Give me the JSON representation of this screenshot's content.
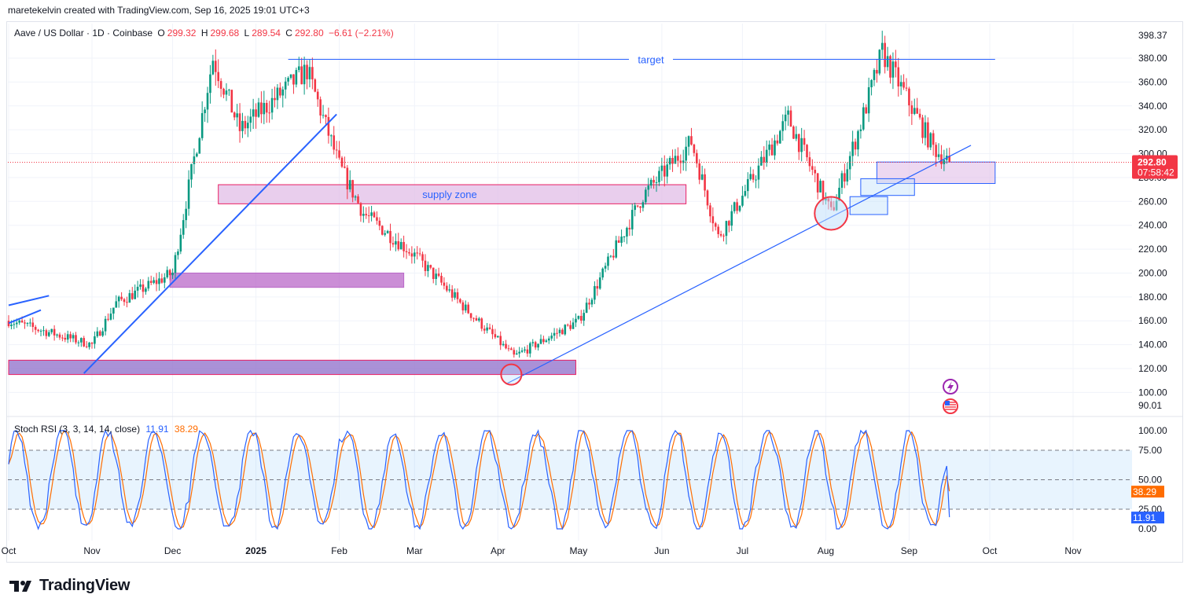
{
  "header": {
    "attribution": "maretekelvin created with TradingView.com, Sep 16, 2025 19:01 UTC+3"
  },
  "legend": {
    "symbol": "Aave / US Dollar · 1D · Coinbase",
    "open_label": "O",
    "open": "299.32",
    "high_label": "H",
    "high": "299.68",
    "low_label": "L",
    "low": "289.54",
    "close_label": "C",
    "close": "292.80",
    "change": "−6.61 (−2.21%)"
  },
  "price_axis": {
    "ticks": [
      "398.37",
      "380.00",
      "360.00",
      "340.00",
      "320.00",
      "300.00",
      "280.00",
      "260.00",
      "240.00",
      "220.00",
      "200.00",
      "180.00",
      "160.00",
      "140.00",
      "120.00",
      "100.00",
      "90.01"
    ],
    "current_price": "292.80",
    "countdown": "07:58:42"
  },
  "time_axis": {
    "ticks": [
      "Oct",
      "Nov",
      "Dec",
      "2025",
      "Feb",
      "Mar",
      "Apr",
      "May",
      "Jun",
      "Jul",
      "Aug",
      "Sep",
      "Oct",
      "Nov"
    ]
  },
  "annotations": {
    "target_label": "target",
    "supply_label": "supply zone"
  },
  "rsi": {
    "legend": "Stoch RSI (3, 3, 14, 14, close)",
    "k": "11.91",
    "d": "38.29",
    "axis_ticks": [
      "100.00",
      "75.00",
      "50.00",
      "25.00",
      "0.00"
    ]
  },
  "footer": {
    "brand": "TradingView"
  },
  "colors": {
    "up": "#089981",
    "down": "#f23645",
    "line": "#2962ff",
    "zone": "#e1bee7",
    "zone_dark": "#ba68c8",
    "k": "#2962ff",
    "d": "#ff6d00"
  },
  "chart_data": [
    {
      "type": "candlestick",
      "title": "Aave / US Dollar · 1D · Coinbase",
      "x_range": [
        "2024-10-01",
        "2025-11-30"
      ],
      "ylim": [
        90.01,
        398.37
      ],
      "series": [
        {
          "name": "AAVEUSD",
          "ohlc_key_points": [
            {
              "date": "2024-10-01",
              "close": 160
            },
            {
              "date": "2024-11-01",
              "close": 140
            },
            {
              "date": "2024-11-10",
              "close": 175
            },
            {
              "date": "2024-12-01",
              "close": 200
            },
            {
              "date": "2024-12-16",
              "close": 380
            },
            {
              "date": "2024-12-26",
              "close": 320
            },
            {
              "date": "2025-01-20",
              "close": 370
            },
            {
              "date": "2025-02-01",
              "close": 290
            },
            {
              "date": "2025-02-10",
              "close": 250
            },
            {
              "date": "2025-03-01",
              "close": 215
            },
            {
              "date": "2025-03-20",
              "close": 170
            },
            {
              "date": "2025-04-07",
              "close": 130
            },
            {
              "date": "2025-05-01",
              "close": 160
            },
            {
              "date": "2025-05-25",
              "close": 265
            },
            {
              "date": "2025-06-12",
              "close": 310
            },
            {
              "date": "2025-06-22",
              "close": 230
            },
            {
              "date": "2025-07-18",
              "close": 330
            },
            {
              "date": "2025-08-03",
              "close": 250
            },
            {
              "date": "2025-08-14",
              "close": 325
            },
            {
              "date": "2025-08-22",
              "close": 385
            },
            {
              "date": "2025-09-10",
              "close": 305
            },
            {
              "date": "2025-09-16",
              "close": 292.8
            }
          ]
        }
      ],
      "annotations": [
        {
          "type": "horizontal-line",
          "label": "target",
          "price": 380
        },
        {
          "type": "zone",
          "label": "supply zone",
          "price_range": [
            258,
            274
          ]
        },
        {
          "type": "zone",
          "price_range": [
            188,
            200
          ]
        },
        {
          "type": "zone",
          "price_range": [
            115,
            127
          ]
        },
        {
          "type": "zone",
          "price_range": [
            275,
            293
          ]
        }
      ]
    },
    {
      "type": "line",
      "title": "Stoch RSI (3, 3, 14, 14, close)",
      "ylim": [
        0,
        100
      ],
      "series": [
        {
          "name": "K",
          "last": 11.91
        },
        {
          "name": "D",
          "last": 38.29
        }
      ]
    }
  ]
}
